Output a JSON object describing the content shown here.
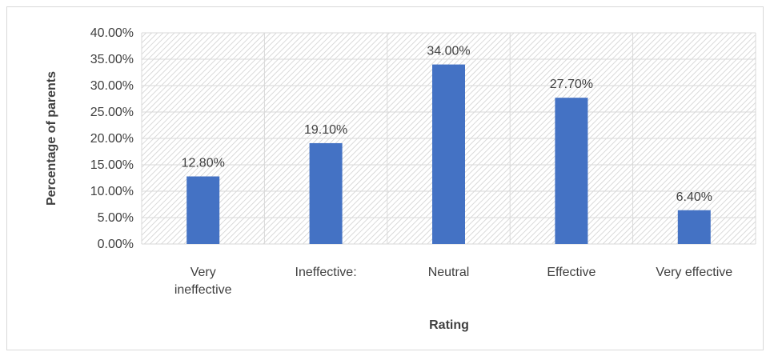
{
  "chart_data": {
    "type": "bar",
    "categories": [
      "Very ineffective",
      "Ineffective:",
      "Neutral",
      "Effective",
      "Very effective"
    ],
    "category_lines": [
      [
        "Very",
        "ineffective"
      ],
      [
        "Ineffective:"
      ],
      [
        "Neutral"
      ],
      [
        "Effective"
      ],
      [
        "Very effective"
      ]
    ],
    "values": [
      12.8,
      19.1,
      34.0,
      27.7,
      6.4
    ],
    "data_labels": [
      "12.80%",
      "19.10%",
      "34.00%",
      "27.70%",
      "6.40%"
    ],
    "y_ticks": [
      "0.00%",
      "5.00%",
      "10.00%",
      "15.00%",
      "20.00%",
      "25.00%",
      "30.00%",
      "35.00%",
      "40.00%"
    ],
    "ylim": [
      0,
      40
    ],
    "title": "",
    "xlabel": "Rating",
    "ylabel": "Percentage of parents",
    "grid": true,
    "legend": "none",
    "bar_color": "#4472c4",
    "grid_color": "#d9d9d9",
    "plot_pattern": "diagonal-hatch"
  }
}
